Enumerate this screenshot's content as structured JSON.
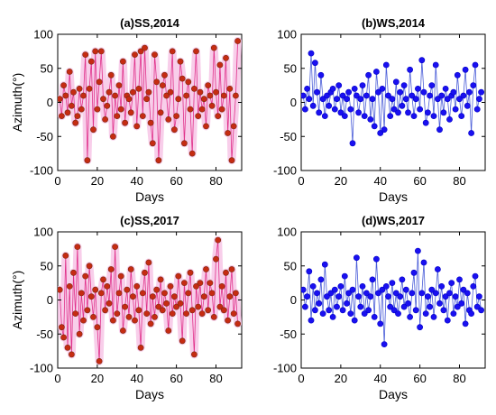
{
  "chart_data": [
    {
      "type": "scatter",
      "title": "(a)SS,2014",
      "xlabel": "Days",
      "ylabel": "Azimuth(°)",
      "xlim": [
        0,
        93
      ],
      "ylim": [
        -100,
        100
      ],
      "xticks": [
        0,
        20,
        40,
        60,
        80
      ],
      "yticks": [
        -100,
        -50,
        0,
        50,
        100
      ],
      "grid": false,
      "colors": {
        "marker": "#c62b12",
        "marker_edge": "#7a2a10",
        "line": "#e0308a",
        "halo": "#f7c6e6"
      },
      "series": [
        {
          "x": [
            1,
            2,
            3,
            4,
            5,
            6,
            7,
            8,
            9,
            10,
            11,
            12,
            13,
            14,
            15,
            16,
            17,
            18,
            19,
            20,
            21,
            22,
            23,
            24,
            25,
            26,
            27,
            28,
            29,
            30,
            31,
            32,
            33,
            34,
            35,
            36,
            37,
            38,
            39,
            40,
            41,
            42,
            43,
            44,
            45,
            46,
            47,
            48,
            49,
            50,
            51,
            52,
            53,
            54,
            55,
            56,
            57,
            58,
            59,
            60,
            61,
            62,
            63,
            64,
            65,
            66,
            67,
            68,
            69,
            70,
            71,
            72,
            73,
            74,
            75,
            76,
            77,
            78,
            79,
            80,
            81,
            82,
            83,
            84,
            85,
            86,
            87,
            88,
            89,
            90,
            91
          ],
          "y": [
            5,
            -20,
            25,
            10,
            -15,
            45,
            -5,
            15,
            -30,
            -20,
            20,
            -10,
            10,
            70,
            -85,
            20,
            60,
            -40,
            75,
            -10,
            30,
            75,
            5,
            -25,
            -5,
            15,
            40,
            -50,
            10,
            -20,
            25,
            -10,
            60,
            -30,
            10,
            5,
            -15,
            15,
            70,
            -35,
            20,
            75,
            -20,
            80,
            5,
            15,
            -30,
            -60,
            70,
            30,
            -85,
            -15,
            25,
            40,
            10,
            -25,
            15,
            75,
            -40,
            -20,
            5,
            60,
            35,
            -60,
            10,
            30,
            -10,
            -75,
            20,
            75,
            -20,
            15,
            -10,
            5,
            -35,
            25,
            10,
            -5,
            80,
            15,
            -20,
            55,
            -10,
            10,
            65,
            -45,
            20,
            -85,
            -35,
            10,
            90
          ]
        }
      ]
    },
    {
      "type": "scatter",
      "title": "(b)WS,2014",
      "xlabel": "Days",
      "ylabel": "",
      "xlim": [
        0,
        93
      ],
      "ylim": [
        -100,
        100
      ],
      "xticks": [
        0,
        20,
        40,
        60,
        80
      ],
      "yticks": [
        -100,
        -50,
        0,
        50,
        100
      ],
      "grid": false,
      "colors": {
        "marker": "#1a10f0",
        "marker_edge": "#0000c8",
        "line": "#4a5dd8",
        "halo": ""
      },
      "series": [
        {
          "x": [
            1,
            2,
            3,
            4,
            5,
            6,
            7,
            8,
            9,
            10,
            11,
            12,
            13,
            14,
            15,
            16,
            17,
            18,
            19,
            20,
            21,
            22,
            23,
            24,
            25,
            26,
            27,
            28,
            29,
            30,
            31,
            32,
            33,
            34,
            35,
            36,
            37,
            38,
            39,
            40,
            41,
            42,
            43,
            44,
            45,
            46,
            47,
            48,
            49,
            50,
            51,
            52,
            53,
            54,
            55,
            56,
            57,
            58,
            59,
            60,
            61,
            62,
            63,
            64,
            65,
            66,
            67,
            68,
            69,
            70,
            71,
            72,
            73,
            74,
            75,
            76,
            77,
            78,
            79,
            80,
            81,
            82,
            83,
            84,
            85,
            86,
            87,
            88,
            89,
            90,
            91
          ],
          "y": [
            10,
            -10,
            20,
            5,
            72,
            -5,
            58,
            15,
            -15,
            40,
            5,
            -20,
            10,
            -5,
            15,
            20,
            -10,
            5,
            25,
            -15,
            10,
            -20,
            5,
            15,
            -10,
            -60,
            20,
            10,
            -15,
            5,
            25,
            -20,
            10,
            40,
            -25,
            5,
            -35,
            45,
            15,
            -45,
            20,
            -40,
            55,
            10,
            -20,
            5,
            -10,
            30,
            -15,
            15,
            -5,
            25,
            5,
            -15,
            48,
            10,
            -20,
            5,
            20,
            -10,
            62,
            15,
            -30,
            -15,
            10,
            25,
            -20,
            55,
            5,
            -40,
            10,
            -15,
            20,
            5,
            -25,
            10,
            15,
            -10,
            40,
            5,
            -20,
            10,
            48,
            -5,
            15,
            -45,
            25,
            55,
            -10,
            5,
            15
          ]
        }
      ]
    },
    {
      "type": "scatter",
      "title": "(c)SS,2017",
      "xlabel": "Days",
      "ylabel": "Azimuth(°)",
      "xlim": [
        0,
        93
      ],
      "ylim": [
        -100,
        100
      ],
      "xticks": [
        0,
        20,
        40,
        60,
        80
      ],
      "yticks": [
        -100,
        -50,
        0,
        50,
        100
      ],
      "grid": false,
      "colors": {
        "marker": "#c62b12",
        "marker_edge": "#7a2a10",
        "line": "#e0308a",
        "halo": "#f7c6e6"
      },
      "series": [
        {
          "x": [
            1,
            2,
            3,
            4,
            5,
            6,
            7,
            8,
            9,
            10,
            11,
            12,
            13,
            14,
            15,
            16,
            17,
            18,
            19,
            20,
            21,
            22,
            23,
            24,
            25,
            26,
            27,
            28,
            29,
            30,
            31,
            32,
            33,
            34,
            35,
            36,
            37,
            38,
            39,
            40,
            41,
            42,
            43,
            44,
            45,
            46,
            47,
            48,
            49,
            50,
            51,
            52,
            53,
            54,
            55,
            56,
            57,
            58,
            59,
            60,
            61,
            62,
            63,
            64,
            65,
            66,
            67,
            68,
            69,
            70,
            71,
            72,
            73,
            74,
            75,
            76,
            77,
            78,
            79,
            80,
            81,
            82,
            83,
            84,
            85,
            86,
            87,
            88,
            89,
            90,
            91
          ],
          "y": [
            15,
            -40,
            -55,
            65,
            -70,
            20,
            -80,
            40,
            -20,
            78,
            -50,
            10,
            -30,
            35,
            -15,
            50,
            5,
            -25,
            15,
            -40,
            -90,
            10,
            30,
            -15,
            20,
            -5,
            45,
            -30,
            78,
            -20,
            10,
            35,
            -45,
            -10,
            15,
            -25,
            45,
            5,
            -30,
            20,
            -15,
            -70,
            10,
            40,
            -20,
            55,
            -35,
            5,
            -25,
            15,
            -10,
            30,
            -15,
            10,
            -5,
            -45,
            20,
            -20,
            5,
            -10,
            35,
            -5,
            -60,
            25,
            -20,
            10,
            40,
            -15,
            -80,
            20,
            -10,
            25,
            -20,
            5,
            45,
            -15,
            25,
            10,
            -25,
            60,
            88,
            -10,
            20,
            -15,
            40,
            -30,
            5,
            45,
            -20,
            10,
            -35
          ]
        }
      ]
    },
    {
      "type": "scatter",
      "title": "(d)WS,2017",
      "xlabel": "Days",
      "ylabel": "",
      "xlim": [
        0,
        93
      ],
      "ylim": [
        -100,
        100
      ],
      "xticks": [
        0,
        20,
        40,
        60,
        80
      ],
      "yticks": [
        -100,
        -50,
        0,
        50,
        100
      ],
      "grid": false,
      "colors": {
        "marker": "#1a10f0",
        "marker_edge": "#0000c8",
        "line": "#4a5dd8",
        "halo": ""
      },
      "series": [
        {
          "x": [
            1,
            2,
            3,
            4,
            5,
            6,
            7,
            8,
            9,
            10,
            11,
            12,
            13,
            14,
            15,
            16,
            17,
            18,
            19,
            20,
            21,
            22,
            23,
            24,
            25,
            26,
            27,
            28,
            29,
            30,
            31,
            32,
            33,
            34,
            35,
            36,
            37,
            38,
            39,
            40,
            41,
            42,
            43,
            44,
            45,
            46,
            47,
            48,
            49,
            50,
            51,
            52,
            53,
            54,
            55,
            56,
            57,
            58,
            59,
            60,
            61,
            62,
            63,
            64,
            65,
            66,
            67,
            68,
            69,
            70,
            71,
            72,
            73,
            74,
            75,
            76,
            77,
            78,
            79,
            80,
            81,
            82,
            83,
            84,
            85,
            86,
            87,
            88,
            89,
            90,
            91
          ],
          "y": [
            15,
            -10,
            5,
            42,
            -30,
            20,
            -15,
            10,
            -5,
            30,
            -20,
            52,
            5,
            -15,
            10,
            -25,
            15,
            -10,
            5,
            20,
            -15,
            35,
            -5,
            10,
            -20,
            15,
            -30,
            62,
            5,
            -10,
            20,
            -20,
            10,
            -15,
            5,
            30,
            -25,
            60,
            10,
            -35,
            15,
            -65,
            20,
            5,
            -10,
            25,
            -15,
            10,
            -20,
            5,
            30,
            -10,
            15,
            -5,
            -25,
            10,
            40,
            -15,
            72,
            -40,
            10,
            55,
            -20,
            5,
            -10,
            15,
            -25,
            10,
            45,
            -5,
            20,
            -15,
            5,
            -30,
            10,
            25,
            -20,
            5,
            -10,
            30,
            -5,
            15,
            -35,
            10,
            -15,
            -20,
            20,
            35,
            -10,
            5,
            -15
          ]
        }
      ]
    }
  ]
}
